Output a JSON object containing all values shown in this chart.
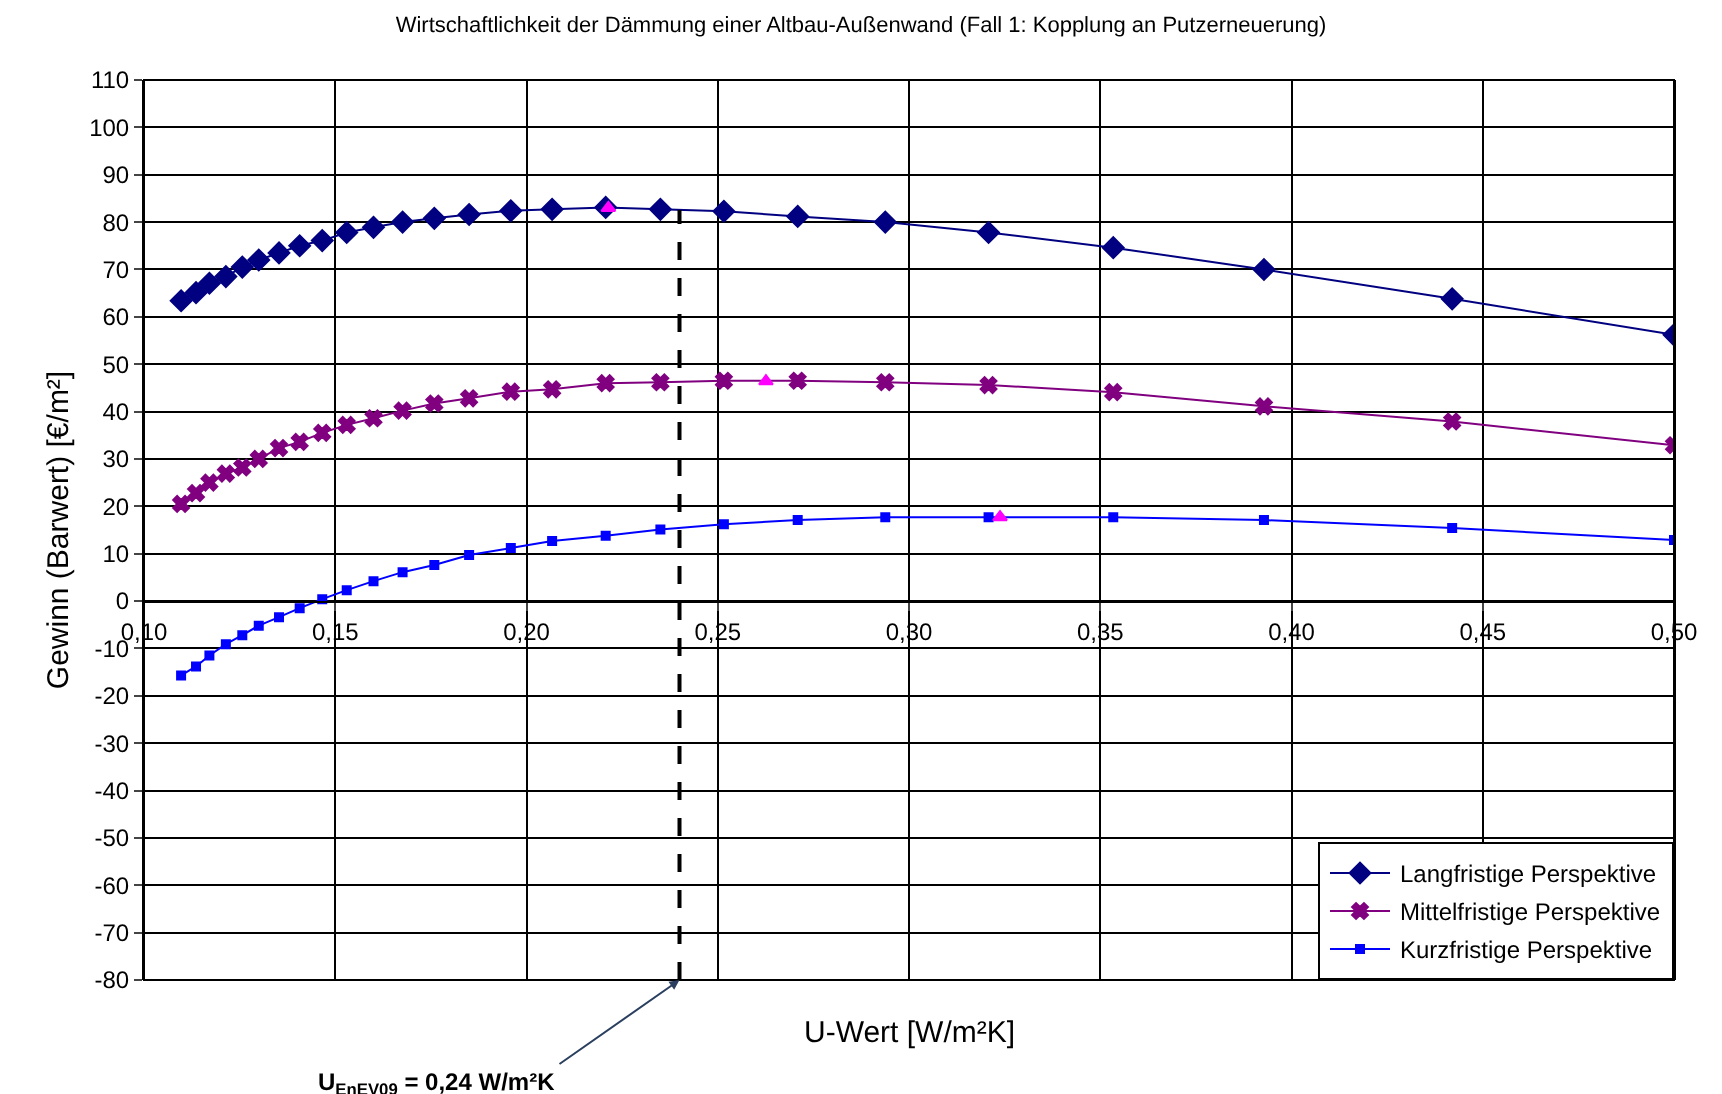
{
  "chart_data": {
    "type": "line",
    "title": "Wirtschaftlichkeit der Dämmung einer Altbau-Außenwand (Fall 1: Kopplung an Putzerneuerung)",
    "xlabel": "U-Wert [W/m²K]",
    "ylabel": "Gewinn (Barwert) [€/m²]",
    "xlim": [
      0.1,
      0.5
    ],
    "xticks": [
      {
        "value": 0.1,
        "label": "0,10"
      },
      {
        "value": 0.15,
        "label": "0,15"
      },
      {
        "value": 0.2,
        "label": "0,20"
      },
      {
        "value": 0.25,
        "label": "0,25"
      },
      {
        "value": 0.3,
        "label": "0,30"
      },
      {
        "value": 0.35,
        "label": "0,35"
      },
      {
        "value": 0.4,
        "label": "0,40"
      },
      {
        "value": 0.45,
        "label": "0,45"
      },
      {
        "value": 0.5,
        "label": "0,50"
      }
    ],
    "ylim": [
      -80,
      110
    ],
    "yticks": [
      -80,
      -70,
      -60,
      -50,
      -40,
      -30,
      -20,
      -10,
      0,
      10,
      20,
      30,
      40,
      50,
      60,
      70,
      80,
      90,
      100,
      110
    ],
    "grid": true,
    "legend": "bottom right",
    "line_style": "solid",
    "x": [
      0.1097,
      0.1136,
      0.1171,
      0.1214,
      0.1257,
      0.13,
      0.1353,
      0.1407,
      0.1466,
      0.153,
      0.16,
      0.1676,
      0.1759,
      0.185,
      0.1959,
      0.2067,
      0.2207,
      0.235,
      0.2516,
      0.2709,
      0.2938,
      0.3208,
      0.3534,
      0.3928,
      0.442,
      0.5
    ],
    "series": [
      {
        "name": "Langfristige Perspektive",
        "color": "#000080",
        "marker": "diamond",
        "values": [
          63.4,
          65.1,
          67.1,
          68.5,
          70.5,
          72.0,
          73.5,
          75.0,
          76.1,
          77.8,
          78.9,
          80.0,
          80.8,
          81.6,
          82.4,
          82.7,
          83.1,
          82.7,
          82.3,
          81.2,
          80.0,
          77.8,
          74.6,
          70.0,
          63.8,
          56.2
        ]
      },
      {
        "name": "Mittelfristige Perspektive",
        "color": "#800080",
        "marker": "cross",
        "values": [
          20.5,
          22.8,
          25.0,
          26.9,
          28.2,
          30.0,
          32.3,
          33.6,
          35.5,
          37.2,
          38.6,
          40.2,
          41.7,
          42.8,
          44.2,
          44.7,
          46.0,
          46.2,
          46.5,
          46.5,
          46.2,
          45.6,
          44.1,
          41.1,
          37.9,
          32.9
        ]
      },
      {
        "name": "Kurzfristige Perspektive",
        "color": "#0000ff",
        "marker": "square",
        "values": [
          -15.7,
          -13.8,
          -11.5,
          -9.1,
          -7.2,
          -5.2,
          -3.4,
          -1.5,
          0.4,
          2.3,
          4.2,
          6.1,
          7.6,
          9.7,
          11.2,
          12.7,
          13.8,
          15.1,
          16.2,
          17.1,
          17.7,
          17.7,
          17.7,
          17.1,
          15.4,
          12.9
        ]
      },
      {
        "type": "scatter",
        "color": "#ff00ff",
        "marker": "triangle",
        "x": [
          0.2214,
          0.2626,
          0.3238
        ],
        "values": [
          83.0,
          46.4,
          17.7
        ]
      }
    ],
    "ref_lines": [
      {
        "axis": "x",
        "value": 0.24,
        "label": "U$_{EnEV09}$ = 0,24 W/m²K",
        "color": "#000000",
        "line_style": "dashed"
      }
    ]
  }
}
